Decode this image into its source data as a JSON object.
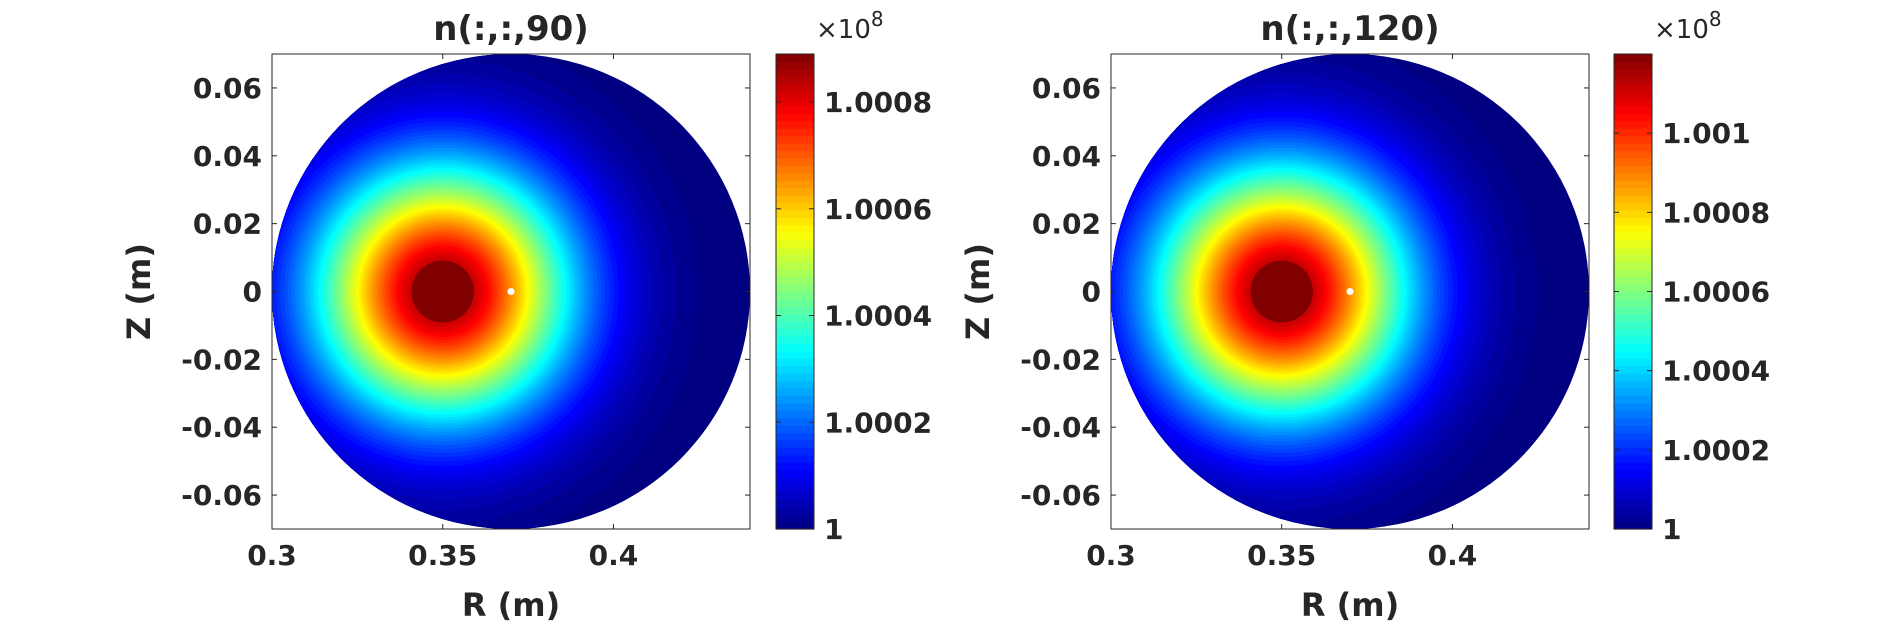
{
  "chart_data": [
    {
      "type": "heatmap",
      "title": "n(:,:,90)",
      "xlabel": "R (m)",
      "ylabel": "Z (m)",
      "xlim": [
        0.3,
        0.44
      ],
      "ylim": [
        -0.07,
        0.07
      ],
      "xticks": [
        0.3,
        0.35,
        0.4
      ],
      "xtick_labels": [
        "0.3",
        "0.35",
        "0.4"
      ],
      "yticks": [
        0.06,
        0.04,
        0.02,
        0,
        -0.02,
        -0.04,
        -0.06
      ],
      "ytick_labels": [
        "0.06",
        "0.04",
        "0.02",
        "0",
        "-0.02",
        "-0.04",
        "-0.06"
      ],
      "domain": {
        "shape": "circle",
        "center": [
          0.37,
          0
        ],
        "radius": 0.07
      },
      "peak": {
        "center": [
          0.35,
          0
        ],
        "value": 1.00089,
        "baseline": 1.0,
        "width": 0.026
      },
      "marker": {
        "R": 0.37,
        "Z": 0,
        "color": "#ffffff"
      },
      "colorbar": {
        "clim": [
          1.0,
          1.00089
        ],
        "ticks": [
          1,
          1.0002,
          1.0004,
          1.0006,
          1.0008
        ],
        "tick_labels": [
          "1",
          "1.0002",
          "1.0004",
          "1.0006",
          "1.0008"
        ],
        "exponent_prefix": "×10",
        "exponent": "8",
        "colormap": "jet",
        "levels": 64
      }
    },
    {
      "type": "heatmap",
      "title": "n(:,:,120)",
      "xlabel": "R (m)",
      "ylabel": "Z (m)",
      "xlim": [
        0.3,
        0.44
      ],
      "ylim": [
        -0.07,
        0.07
      ],
      "xticks": [
        0.3,
        0.35,
        0.4
      ],
      "xtick_labels": [
        "0.3",
        "0.35",
        "0.4"
      ],
      "yticks": [
        0.06,
        0.04,
        0.02,
        0,
        -0.02,
        -0.04,
        -0.06
      ],
      "ytick_labels": [
        "0.06",
        "0.04",
        "0.02",
        "0",
        "-0.02",
        "-0.04",
        "-0.06"
      ],
      "domain": {
        "shape": "circle",
        "center": [
          0.37,
          0
        ],
        "radius": 0.07
      },
      "peak": {
        "center": [
          0.35,
          0
        ],
        "value": 1.0012,
        "baseline": 1.0,
        "width": 0.026
      },
      "marker": {
        "R": 0.37,
        "Z": 0,
        "color": "#ffffff"
      },
      "colorbar": {
        "clim": [
          1.0,
          1.0012
        ],
        "ticks": [
          1,
          1.0002,
          1.0004,
          1.0006,
          1.0008,
          1.001
        ],
        "tick_labels": [
          "1",
          "1.0002",
          "1.0004",
          "1.0006",
          "1.0008",
          "1.001"
        ],
        "exponent_prefix": "×10",
        "exponent": "8",
        "colormap": "jet",
        "levels": 64
      }
    }
  ]
}
